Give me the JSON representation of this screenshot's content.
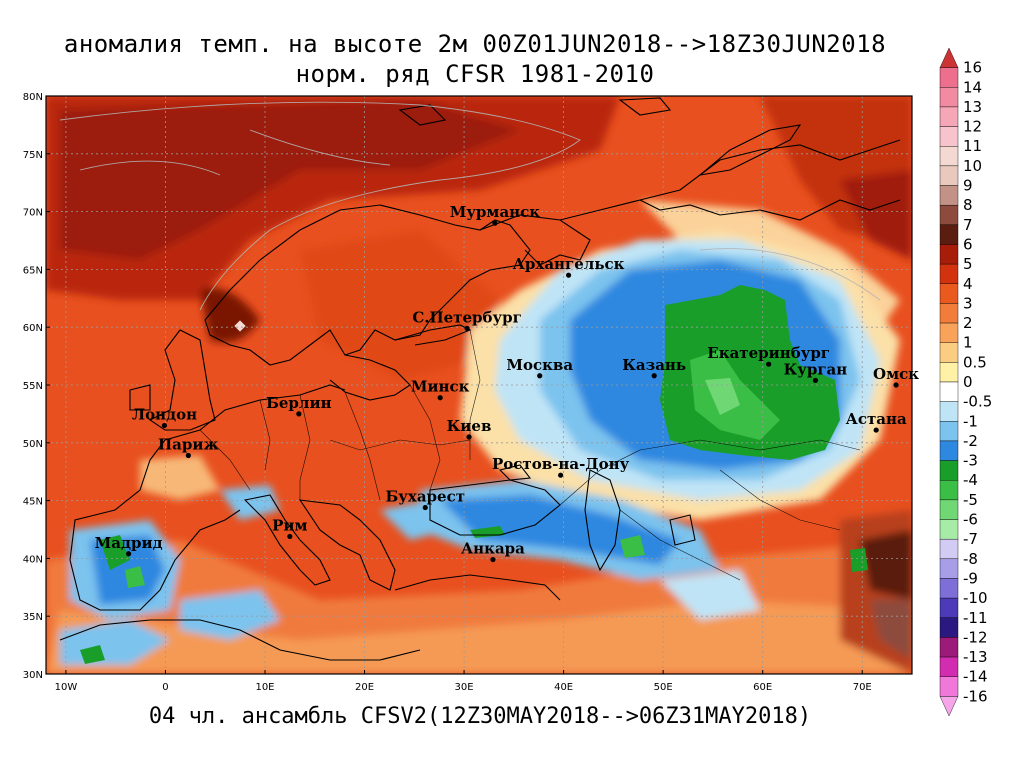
{
  "title_line1": "аномалия темп. на высоте 2м 00Z01JUN2018-->18Z30JUN2018",
  "title_line2": "норм. ряд CFSR 1981-2010",
  "footer": "04 чл. ансамбль CFSV2(12Z30MAY2018-->06Z31MAY2018)",
  "lat_labels": [
    "80N",
    "75N",
    "70N",
    "65N",
    "60N",
    "55N",
    "50N",
    "45N",
    "40N",
    "35N",
    "30N"
  ],
  "lat_values": [
    80,
    75,
    70,
    65,
    60,
    55,
    50,
    45,
    40,
    35,
    30
  ],
  "lon_labels": [
    "10W",
    "0",
    "10E",
    "20E",
    "30E",
    "40E",
    "50E",
    "60E",
    "70E"
  ],
  "lon_values": [
    -10,
    0,
    10,
    20,
    30,
    40,
    50,
    60,
    70
  ],
  "cities": [
    {
      "name": "Мурманск",
      "lon": 33.1,
      "lat": 69.0
    },
    {
      "name": "Архангельск",
      "lon": 40.5,
      "lat": 64.5
    },
    {
      "name": "С.Петербург",
      "lon": 30.3,
      "lat": 59.9
    },
    {
      "name": "Москва",
      "lon": 37.6,
      "lat": 55.8
    },
    {
      "name": "Казань",
      "lon": 49.1,
      "lat": 55.8
    },
    {
      "name": "Екатеринбург",
      "lon": 60.6,
      "lat": 56.8
    },
    {
      "name": "Курган",
      "lon": 65.3,
      "lat": 55.4
    },
    {
      "name": "Омск",
      "lon": 73.4,
      "lat": 55.0
    },
    {
      "name": "Астана",
      "lon": 71.4,
      "lat": 51.1
    },
    {
      "name": "Минск",
      "lon": 27.6,
      "lat": 53.9
    },
    {
      "name": "Берлин",
      "lon": 13.4,
      "lat": 52.5
    },
    {
      "name": "Лондон",
      "lon": -0.1,
      "lat": 51.5
    },
    {
      "name": "Париж",
      "lon": 2.3,
      "lat": 48.9
    },
    {
      "name": "Киев",
      "lon": 30.5,
      "lat": 50.5
    },
    {
      "name": "Ростов-на-Дону",
      "lon": 39.7,
      "lat": 47.2
    },
    {
      "name": "Бухарест",
      "lon": 26.1,
      "lat": 44.4
    },
    {
      "name": "Рим",
      "lon": 12.5,
      "lat": 41.9
    },
    {
      "name": "Мадрид",
      "lon": -3.7,
      "lat": 40.4
    },
    {
      "name": "Анкара",
      "lon": 32.9,
      "lat": 39.9
    }
  ],
  "colorbar": {
    "labels": [
      "16",
      "14",
      "13",
      "12",
      "11",
      "10",
      "9",
      "8",
      "7",
      "6",
      "5",
      "4",
      "3",
      "2",
      "1",
      "0.5",
      "0",
      "-0.5",
      "-1",
      "-2",
      "-3",
      "-4",
      "-5",
      "-6",
      "-7",
      "-8",
      "-9",
      "-10",
      "-11",
      "-12",
      "-13",
      "-14",
      "-16"
    ],
    "colors": [
      "#cc3333",
      "#ee6e8e",
      "#f28aa2",
      "#f5a7b8",
      "#f7c3cd",
      "#f4d8d2",
      "#e9c9bd",
      "#c29286",
      "#8c4b3c",
      "#5a1d0f",
      "#a71d0a",
      "#d3320e",
      "#ea5a1e",
      "#f27d3a",
      "#f8a25a",
      "#fbcd82",
      "#fff1a6",
      "#ffffff",
      "#bfe4f6",
      "#7cc3ee",
      "#2f88e0",
      "#1a9e2a",
      "#3bbe45",
      "#6fd874",
      "#a6eba6",
      "#d2ccf4",
      "#a79ee8",
      "#7c6fd8",
      "#4b3bb8",
      "#2b1880",
      "#9c1a7a",
      "#d22cb0",
      "#f078d8",
      "#f6a6e8"
    ]
  },
  "legend_colors": {
    "warm_main": "#e8451a",
    "warm_strong": "#b3200a",
    "cold_main": "#2f88e0",
    "very_cold": "#1a9e2a"
  }
}
